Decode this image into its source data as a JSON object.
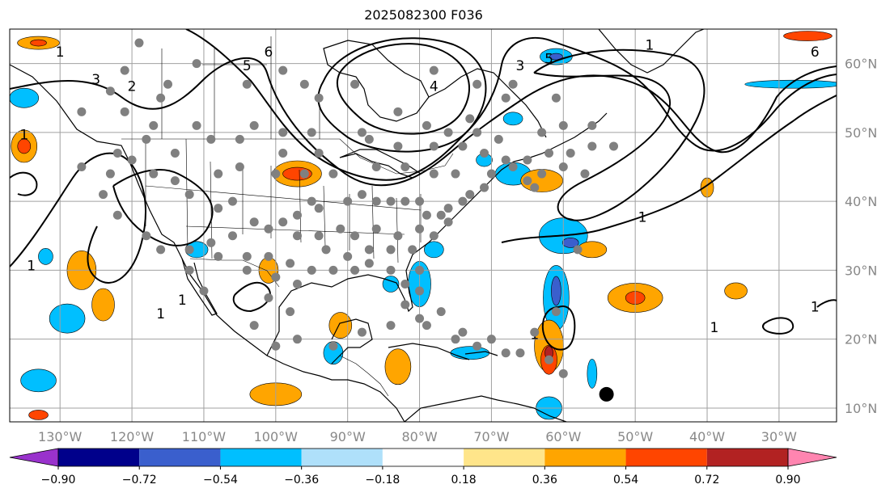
{
  "title": "2025082300 F036",
  "map": {
    "lon_range": [
      -137,
      -22
    ],
    "lat_range": [
      8,
      65
    ],
    "lon_ticks": [
      -130,
      -120,
      -110,
      -100,
      -90,
      -80,
      -70,
      -60,
      -50,
      -40,
      -30
    ],
    "lon_labels": [
      "130°W",
      "120°W",
      "110°W",
      "100°W",
      "90°W",
      "80°W",
      "70°W",
      "60°W",
      "50°W",
      "40°W",
      "30°W"
    ],
    "lat_ticks": [
      10,
      20,
      30,
      40,
      50,
      60
    ],
    "lat_labels": [
      "10°N",
      "20°N",
      "30°N",
      "40°N",
      "50°N",
      "60°N"
    ],
    "grid": true,
    "colors": {
      "coast": "#000000",
      "grid": "#a0a0a0",
      "contour": "#000000",
      "station": "#808080",
      "marker": "#000000"
    }
  },
  "colorbar": {
    "levels": [
      -0.9,
      -0.72,
      -0.54,
      -0.36,
      -0.18,
      0.18,
      0.36,
      0.54,
      0.72,
      0.9
    ],
    "labels": [
      "−0.90",
      "−0.72",
      "−0.54",
      "−0.36",
      "−0.18",
      "0.18",
      "0.36",
      "0.54",
      "0.72",
      "0.90"
    ],
    "colors": [
      "#9932cc",
      "#00008b",
      "#3a5fcd",
      "#00bfff",
      "#afe0fa",
      "#ffffff",
      "#ffe58a",
      "#ffa500",
      "#ff4500",
      "#b22222",
      "#ff85b0"
    ],
    "extend": "both"
  },
  "contour_labels": [
    {
      "text": "1",
      "lon": -130,
      "lat": 61
    },
    {
      "text": "3",
      "lon": -125,
      "lat": 57
    },
    {
      "text": "2",
      "lon": -120,
      "lat": 56
    },
    {
      "text": "6",
      "lon": -101,
      "lat": 61
    },
    {
      "text": "5",
      "lon": -104,
      "lat": 59
    },
    {
      "text": "4",
      "lon": -78,
      "lat": 56
    },
    {
      "text": "3",
      "lon": -66,
      "lat": 59
    },
    {
      "text": "5",
      "lon": -62,
      "lat": 60
    },
    {
      "text": "1",
      "lon": -48,
      "lat": 62
    },
    {
      "text": "6",
      "lon": -25,
      "lat": 61
    },
    {
      "text": "1",
      "lon": -116,
      "lat": 23
    },
    {
      "text": "1",
      "lon": -113,
      "lat": 25
    },
    {
      "text": "1",
      "lon": -49,
      "lat": 37
    },
    {
      "text": "1",
      "lon": -64,
      "lat": 20
    },
    {
      "text": "1",
      "lon": -39,
      "lat": 21
    },
    {
      "text": "1",
      "lon": -25,
      "lat": 24
    },
    {
      "text": "1",
      "lon": -134,
      "lat": 30
    },
    {
      "text": "1",
      "lon": -135,
      "lat": 49
    }
  ],
  "stations": [
    [
      -119,
      63
    ],
    [
      -121,
      59
    ],
    [
      -111,
      60
    ],
    [
      -115,
      57
    ],
    [
      -104,
      57
    ],
    [
      -99,
      59
    ],
    [
      -96,
      57
    ],
    [
      -89,
      57
    ],
    [
      -94,
      55
    ],
    [
      -116,
      55
    ],
    [
      -121,
      53
    ],
    [
      -117,
      51
    ],
    [
      -111,
      51
    ],
    [
      -109,
      49
    ],
    [
      -103,
      51
    ],
    [
      -99,
      50
    ],
    [
      -95,
      50
    ],
    [
      -88,
      50
    ],
    [
      -83,
      53
    ],
    [
      -78,
      59
    ],
    [
      -72,
      57
    ],
    [
      -68,
      55
    ],
    [
      -73,
      52
    ],
    [
      -79,
      51
    ],
    [
      -76,
      50
    ],
    [
      -72,
      50
    ],
    [
      -69,
      49
    ],
    [
      -65,
      46
    ],
    [
      -62,
      47
    ],
    [
      -59,
      47
    ],
    [
      -56,
      48
    ],
    [
      -63,
      50
    ],
    [
      -60,
      51
    ],
    [
      -61,
      55
    ],
    [
      -67,
      57
    ],
    [
      -53,
      48
    ],
    [
      -57,
      44
    ],
    [
      -60,
      45
    ],
    [
      -63,
      44
    ],
    [
      -65,
      43
    ],
    [
      -67,
      45
    ],
    [
      -70,
      44
    ],
    [
      -71,
      42
    ],
    [
      -73,
      41
    ],
    [
      -74,
      40
    ],
    [
      -76,
      39
    ],
    [
      -77,
      38
    ],
    [
      -79,
      38
    ],
    [
      -80,
      40
    ],
    [
      -82,
      40
    ],
    [
      -84,
      40
    ],
    [
      -86,
      40
    ],
    [
      -88,
      41
    ],
    [
      -90,
      40
    ],
    [
      -94,
      39
    ],
    [
      -95,
      40
    ],
    [
      -97,
      38
    ],
    [
      -99,
      37
    ],
    [
      -101,
      36
    ],
    [
      -103,
      37
    ],
    [
      -106,
      40
    ],
    [
      -108,
      39
    ],
    [
      -112,
      41
    ],
    [
      -114,
      43
    ],
    [
      -117,
      44
    ],
    [
      -120,
      46
    ],
    [
      -122,
      47
    ],
    [
      -123,
      44
    ],
    [
      -124,
      41
    ],
    [
      -122,
      38
    ],
    [
      -118,
      35
    ],
    [
      -116,
      33
    ],
    [
      -112,
      33
    ],
    [
      -109,
      34
    ],
    [
      -106,
      35
    ],
    [
      -104,
      32
    ],
    [
      -101,
      32
    ],
    [
      -98,
      31
    ],
    [
      -95,
      30
    ],
    [
      -93,
      33
    ],
    [
      -90,
      32
    ],
    [
      -87,
      33
    ],
    [
      -84,
      33
    ],
    [
      -81,
      33
    ],
    [
      -78,
      35
    ],
    [
      -76,
      37
    ],
    [
      -80,
      36
    ],
    [
      -83,
      35
    ],
    [
      -86,
      36
    ],
    [
      -89,
      35
    ],
    [
      -91,
      36
    ],
    [
      -94,
      35
    ],
    [
      -97,
      35
    ],
    [
      -100,
      29
    ],
    [
      -97,
      28
    ],
    [
      -104,
      30
    ],
    [
      -108,
      32
    ],
    [
      -112,
      30
    ],
    [
      -110,
      27
    ],
    [
      -101,
      26
    ],
    [
      -98,
      24
    ],
    [
      -103,
      22
    ],
    [
      -100,
      19
    ],
    [
      -97,
      20
    ],
    [
      -92,
      19
    ],
    [
      -88,
      21
    ],
    [
      -84,
      22
    ],
    [
      -80,
      23
    ],
    [
      -77,
      24
    ],
    [
      -74,
      21
    ],
    [
      -70,
      20
    ],
    [
      -66,
      18
    ],
    [
      -62,
      17
    ],
    [
      -60,
      15
    ],
    [
      -64,
      21
    ],
    [
      -68,
      18
    ],
    [
      -72,
      19
    ],
    [
      -75,
      20
    ],
    [
      -79,
      22
    ],
    [
      -82,
      25
    ],
    [
      -80,
      27
    ],
    [
      -80,
      30
    ],
    [
      -82,
      28
    ],
    [
      -84,
      30
    ],
    [
      -87,
      31
    ],
    [
      -89,
      30
    ],
    [
      -92,
      30
    ],
    [
      -58,
      33
    ],
    [
      -61,
      24
    ],
    [
      -127,
      53
    ],
    [
      -127,
      45
    ],
    [
      -123,
      56
    ],
    [
      -118,
      49
    ],
    [
      -108,
      44
    ],
    [
      -105,
      45
    ],
    [
      -100,
      44
    ],
    [
      -96,
      44
    ],
    [
      -92,
      44
    ],
    [
      -86,
      45
    ],
    [
      -82,
      45
    ],
    [
      -78,
      44
    ],
    [
      -75,
      44
    ],
    [
      -71,
      47
    ],
    [
      -114,
      47
    ],
    [
      -105,
      49
    ],
    [
      -99,
      47
    ],
    [
      -94,
      47
    ],
    [
      -87,
      49
    ],
    [
      -83,
      48
    ],
    [
      -78,
      48
    ],
    [
      -74,
      48
    ],
    [
      -68,
      46
    ],
    [
      -64,
      42
    ],
    [
      -56,
      51
    ]
  ],
  "marker": {
    "lon": -54,
    "lat": 12
  },
  "shading": [
    {
      "lon": -133,
      "lat": 63,
      "rx": 26,
      "ry": 8,
      "level": "0.36"
    },
    {
      "lon": -133,
      "lat": 63,
      "rx": 10,
      "ry": 4,
      "level": "0.54"
    },
    {
      "lon": -135,
      "lat": 55,
      "rx": 18,
      "ry": 12,
      "level": "-0.36"
    },
    {
      "lon": -135,
      "lat": 48,
      "rx": 16,
      "ry": 20,
      "level": "0.36"
    },
    {
      "lon": -135,
      "lat": 48,
      "rx": 8,
      "ry": 9,
      "level": "0.54"
    },
    {
      "lon": -132,
      "lat": 32,
      "rx": 9,
      "ry": 10,
      "level": "-0.36"
    },
    {
      "lon": -127,
      "lat": 30,
      "rx": 18,
      "ry": 24,
      "level": "0.36"
    },
    {
      "lon": -124,
      "lat": 25,
      "rx": 14,
      "ry": 20,
      "level": "0.36"
    },
    {
      "lon": -129,
      "lat": 23,
      "rx": 22,
      "ry": 18,
      "level": "-0.36"
    },
    {
      "lon": -133,
      "lat": 14,
      "rx": 22,
      "ry": 14,
      "level": "-0.36"
    },
    {
      "lon": -133,
      "lat": 9,
      "rx": 12,
      "ry": 6,
      "level": "0.54"
    },
    {
      "lon": -111,
      "lat": 33,
      "rx": 14,
      "ry": 10,
      "level": "-0.36"
    },
    {
      "lon": -101,
      "lat": 30,
      "rx": 12,
      "ry": 16,
      "level": "0.36"
    },
    {
      "lon": -97,
      "lat": 44,
      "rx": 30,
      "ry": 16,
      "level": "0.36"
    },
    {
      "lon": -97,
      "lat": 44,
      "rx": 18,
      "ry": 8,
      "level": "0.54"
    },
    {
      "lon": -78,
      "lat": 33,
      "rx": 12,
      "ry": 10,
      "level": "-0.36"
    },
    {
      "lon": -80,
      "lat": 28,
      "rx": 14,
      "ry": 28,
      "level": "-0.36"
    },
    {
      "lon": -84,
      "lat": 28,
      "rx": 10,
      "ry": 10,
      "level": "-0.36"
    },
    {
      "lon": -91,
      "lat": 22,
      "rx": 14,
      "ry": 16,
      "level": "0.36"
    },
    {
      "lon": -92,
      "lat": 18,
      "rx": 12,
      "ry": 14,
      "level": "-0.36"
    },
    {
      "lon": -83,
      "lat": 16,
      "rx": 16,
      "ry": 22,
      "level": "0.36"
    },
    {
      "lon": -73,
      "lat": 18,
      "rx": 24,
      "ry": 8,
      "level": "-0.36"
    },
    {
      "lon": -100,
      "lat": 12,
      "rx": 32,
      "ry": 14,
      "level": "0.36"
    },
    {
      "lon": -67,
      "lat": 44,
      "rx": 22,
      "ry": 14,
      "level": "-0.36"
    },
    {
      "lon": -63,
      "lat": 43,
      "rx": 26,
      "ry": 14,
      "level": "0.36"
    },
    {
      "lon": -71,
      "lat": 46,
      "rx": 10,
      "ry": 8,
      "level": "-0.36"
    },
    {
      "lon": -61,
      "lat": 61,
      "rx": 20,
      "ry": 10,
      "level": "-0.36"
    },
    {
      "lon": -61,
      "lat": 61,
      "rx": 8,
      "ry": 4,
      "level": "-0.54"
    },
    {
      "lon": -67,
      "lat": 52,
      "rx": 12,
      "ry": 8,
      "level": "-0.36"
    },
    {
      "lon": -60,
      "lat": 35,
      "rx": 30,
      "ry": 22,
      "level": "-0.36"
    },
    {
      "lon": -59,
      "lat": 34,
      "rx": 10,
      "ry": 6,
      "level": "-0.54"
    },
    {
      "lon": -56,
      "lat": 33,
      "rx": 18,
      "ry": 10,
      "level": "0.36"
    },
    {
      "lon": -61,
      "lat": 26,
      "rx": 16,
      "ry": 40,
      "level": "-0.36"
    },
    {
      "lon": -61,
      "lat": 27,
      "rx": 6,
      "ry": 18,
      "level": "-0.54"
    },
    {
      "lon": -62,
      "lat": 19,
      "rx": 18,
      "ry": 32,
      "level": "0.36"
    },
    {
      "lon": -62,
      "lat": 17,
      "rx": 10,
      "ry": 18,
      "level": "0.54"
    },
    {
      "lon": -62,
      "lat": 18,
      "rx": 5,
      "ry": 8,
      "level": "0.72"
    },
    {
      "lon": -56,
      "lat": 15,
      "rx": 6,
      "ry": 18,
      "level": "-0.36"
    },
    {
      "lon": -62,
      "lat": 10,
      "rx": 16,
      "ry": 14,
      "level": "-0.36"
    },
    {
      "lon": -50,
      "lat": 26,
      "rx": 34,
      "ry": 18,
      "level": "0.36"
    },
    {
      "lon": -50,
      "lat": 26,
      "rx": 12,
      "ry": 8,
      "level": "0.54"
    },
    {
      "lon": -40,
      "lat": 42,
      "rx": 8,
      "ry": 12,
      "level": "0.36"
    },
    {
      "lon": -36,
      "lat": 27,
      "rx": 14,
      "ry": 10,
      "level": "0.36"
    },
    {
      "lon": -28,
      "lat": 57,
      "rx": 60,
      "ry": 5,
      "level": "-0.36"
    },
    {
      "lon": -26,
      "lat": 64,
      "rx": 30,
      "ry": 6,
      "level": "0.54"
    }
  ]
}
